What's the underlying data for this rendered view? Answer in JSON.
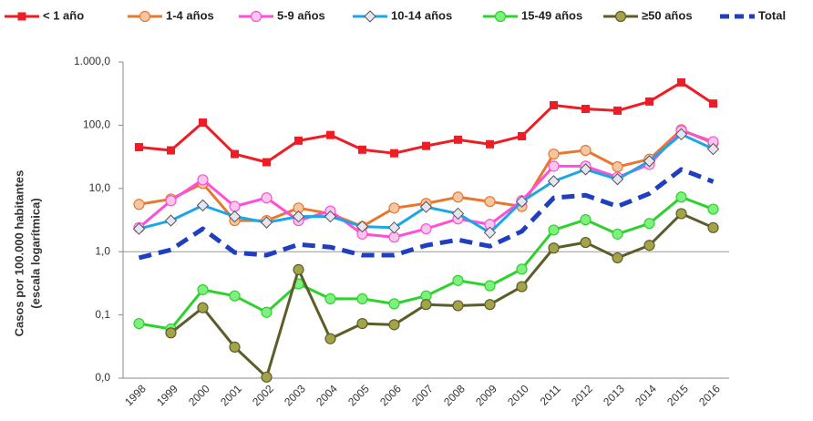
{
  "chart_data": {
    "type": "line",
    "ylabel": [
      "Casos por 100.000 habitantes",
      "(escala logarítmica)"
    ],
    "categories": [
      "1998",
      "1999",
      "2000",
      "2001",
      "2002",
      "2003",
      "2004",
      "2005",
      "2006",
      "2007",
      "2008",
      "2009",
      "2010",
      "2011",
      "2012",
      "2013",
      "2014",
      "2015",
      "2016"
    ],
    "log_scale": true,
    "ylim": [
      0.01,
      1000
    ],
    "yticks": [
      {
        "value": 0.01,
        "label": "0,0"
      },
      {
        "value": 0.1,
        "label": "0,1"
      },
      {
        "value": 1,
        "label": "1,0"
      },
      {
        "value": 10,
        "label": "10,0"
      },
      {
        "value": 100,
        "label": "100,0"
      },
      {
        "value": 1000,
        "label": "1.000,0"
      }
    ],
    "reference_line": 1,
    "legend": "top",
    "series": [
      {
        "name": "< 1 año",
        "color": "#ee1c25",
        "marker": "square",
        "values": [
          45,
          40,
          110,
          35,
          26,
          57,
          70,
          41,
          36,
          47,
          59,
          50,
          67,
          207,
          181,
          170,
          237,
          475,
          220
        ]
      },
      {
        "name": "1-4 años",
        "color": "#e8782f",
        "marker": "circle",
        "values": [
          5.6,
          6.8,
          12,
          3.1,
          3.1,
          4.9,
          4.0,
          2.5,
          4.9,
          5.8,
          7.3,
          6.2,
          5.2,
          35,
          40,
          22,
          29,
          85,
          52
        ]
      },
      {
        "name": "5-9 años",
        "color": "#ff4fd8",
        "marker": "circle",
        "values": [
          2.4,
          6.4,
          13.7,
          5.2,
          7.1,
          3.1,
          4.4,
          1.9,
          1.7,
          2.3,
          3.3,
          2.7,
          6.4,
          22.5,
          22.5,
          15,
          24,
          82,
          55
        ]
      },
      {
        "name": "10-14 años",
        "color": "#1aa7e8",
        "marker": "diamond",
        "values": [
          2.3,
          3.1,
          5.4,
          3.6,
          2.9,
          3.6,
          3.6,
          2.5,
          2.4,
          5.1,
          4.0,
          2.0,
          6.2,
          13,
          20,
          14,
          27,
          72,
          42
        ]
      },
      {
        "name": "15-49 años",
        "color": "#2fd12f",
        "marker": "circle",
        "values": [
          0.073,
          0.06,
          0.25,
          0.2,
          0.11,
          0.31,
          0.18,
          0.18,
          0.15,
          0.2,
          0.35,
          0.29,
          0.53,
          2.2,
          3.2,
          1.9,
          2.8,
          7.3,
          4.7
        ]
      },
      {
        "name": "≥50 años",
        "color": "#5d5d2a",
        "marker": "circle",
        "values": [
          null,
          0.052,
          0.13,
          0.031,
          0.0104,
          0.52,
          0.042,
          0.073,
          0.07,
          0.146,
          0.14,
          0.146,
          0.28,
          1.14,
          1.4,
          0.8,
          1.26,
          4.0,
          2.4
        ]
      },
      {
        "name": "Total",
        "color": "#1f3fbf",
        "marker": "dash",
        "values": [
          0.8,
          1.07,
          2.3,
          0.97,
          0.88,
          1.3,
          1.18,
          0.88,
          0.88,
          1.26,
          1.54,
          1.22,
          2.1,
          7.1,
          7.8,
          5.2,
          8.3,
          20,
          12.8
        ]
      }
    ]
  }
}
